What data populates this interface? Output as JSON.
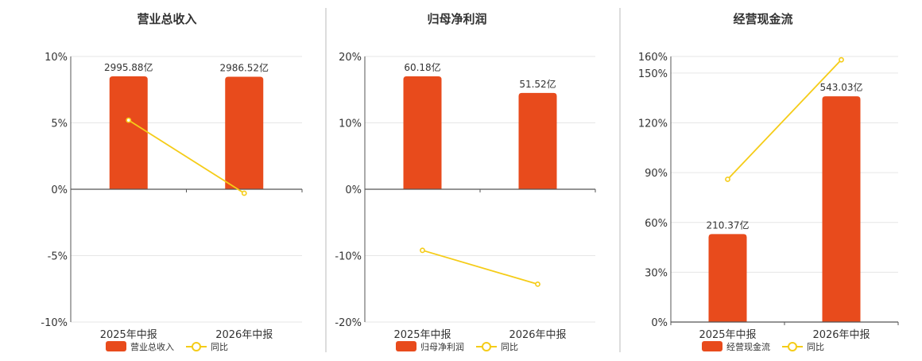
{
  "colors": {
    "bar": "#e84b1c",
    "line": "#f5cc18",
    "grid": "#e6e6e6",
    "axis": "#555555",
    "divider": "#bbbbbb"
  },
  "chart_data": [
    {
      "type": "bar",
      "title": "营业总收入",
      "categories": [
        "2025年中报",
        "2026年中报"
      ],
      "bar_axis": {
        "ylim": [
          0,
          10
        ],
        "ticks": [
          0,
          5,
          10
        ]
      },
      "bar_values": [
        8.5,
        8.47
      ],
      "bar_labels": [
        "2995.88亿",
        "2986.52亿"
      ],
      "line_values": [
        5.2,
        -0.3
      ],
      "y_ticks": [
        "10%",
        "5%",
        "0%",
        "-5%",
        "-10%"
      ],
      "y_tick_values": [
        10,
        5,
        0,
        -5,
        -10
      ],
      "ylim": [
        -10,
        10
      ],
      "legend": [
        "营业总收入",
        "同比"
      ]
    },
    {
      "type": "bar",
      "title": "归母净利润",
      "categories": [
        "2025年中报",
        "2026年中报"
      ],
      "bar_values": [
        17.0,
        14.5
      ],
      "bar_labels": [
        "60.18亿",
        "51.52亿"
      ],
      "line_values": [
        -9.2,
        -14.3
      ],
      "y_ticks": [
        "20%",
        "10%",
        "0%",
        "-10%",
        "-20%"
      ],
      "y_tick_values": [
        20,
        10,
        0,
        -10,
        -20
      ],
      "ylim": [
        -20,
        20
      ],
      "legend": [
        "归母净利润",
        "同比"
      ]
    },
    {
      "type": "bar",
      "title": "经营现金流",
      "categories": [
        "2025年中报",
        "2026年中报"
      ],
      "bar_values": [
        53,
        136
      ],
      "bar_labels": [
        "210.37亿",
        "543.03亿"
      ],
      "line_values": [
        86,
        158
      ],
      "y_ticks": [
        "160%",
        "150%",
        "120%",
        "90%",
        "60%",
        "30%",
        "0%"
      ],
      "y_tick_values": [
        160,
        150,
        120,
        90,
        60,
        30,
        0
      ],
      "ylim": [
        0,
        160
      ],
      "legend": [
        "经营现金流",
        "同比"
      ]
    }
  ]
}
